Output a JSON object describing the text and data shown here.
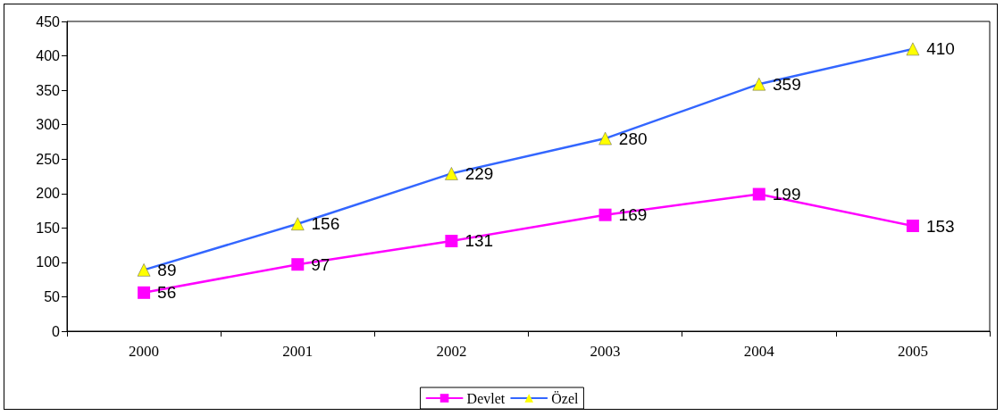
{
  "chart_data": {
    "type": "line",
    "categories": [
      "2000",
      "2001",
      "2002",
      "2003",
      "2004",
      "2005"
    ],
    "series": [
      {
        "name": "Devlet",
        "color": "#ff00ff",
        "marker": "square",
        "values": [
          56,
          97,
          131,
          169,
          199,
          153
        ]
      },
      {
        "name": "Özel",
        "color": "#3366ff",
        "marker": "triangle",
        "colors": [
          "#ffff00",
          "#ffff00",
          "#ffff00",
          "#ffff00",
          "#ffff00",
          "#ffff00"
        ],
        "values": [
          89,
          156,
          229,
          280,
          359,
          410
        ]
      }
    ],
    "ylim": [
      0,
      450
    ],
    "yticks": [
      0,
      50,
      100,
      150,
      200,
      250,
      300,
      350,
      400,
      450
    ],
    "grid": false,
    "legend": "bottom",
    "data_labels": true,
    "line_style": "solid"
  }
}
